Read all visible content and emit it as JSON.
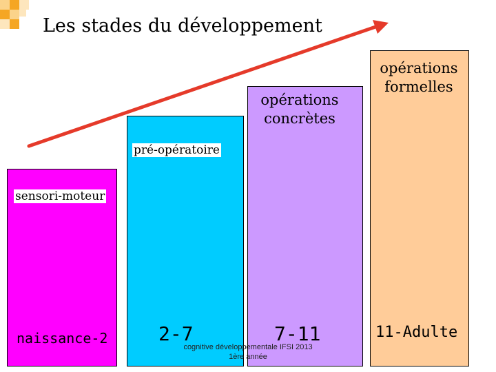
{
  "title": "Les stades du développement",
  "stages": [
    {
      "id": "sensori-moteur",
      "label": "sensori-moteur",
      "age": "naissance-2",
      "color": "#ff00ff"
    },
    {
      "id": "pre-operatoire",
      "label": "pré-opératoire",
      "age": "2-7",
      "color": "#00ccff"
    },
    {
      "id": "operations-concretes",
      "label_lines": [
        "opérations",
        "concrètes"
      ],
      "age": "7-11",
      "color": "#cc99ff"
    },
    {
      "id": "operations-formelles",
      "label_lines": [
        "opérations",
        "formelles"
      ],
      "age": "11-Adulte",
      "color": "#ffcc99"
    }
  ],
  "footer": {
    "line1": "cognitive développementale IFSI 2013",
    "line2": "1ère année"
  },
  "colors": {
    "arrow": "#e53a2a",
    "corner_orange": "#f5a623",
    "corner_light": "#fbd38a"
  },
  "icons": {
    "arrow": "progression-arrow-icon",
    "corner": "corner-squares-decoration"
  }
}
